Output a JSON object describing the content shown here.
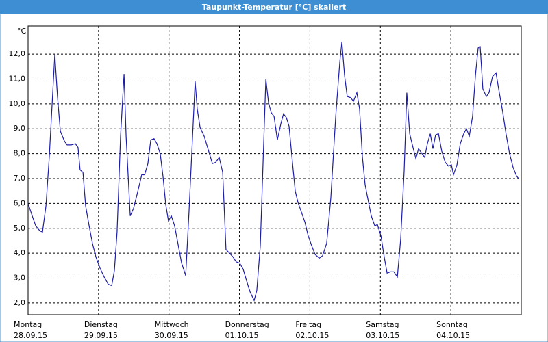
{
  "chart_data": {
    "type": "line",
    "title": "Taupunkt-Temperatur [°C] skaliert",
    "y_unit": "°C",
    "xlim": [
      0,
      168
    ],
    "ylim": [
      1.53,
      13.13
    ],
    "xticks": [
      {
        "value": 0,
        "label": "Montag"
      },
      {
        "value": 24,
        "label": "Dienstag"
      },
      {
        "value": 48,
        "label": "Mittwoch"
      },
      {
        "value": 72,
        "label": "Donnerstag"
      },
      {
        "value": 96,
        "label": "Freitag"
      },
      {
        "value": 120,
        "label": "Samstag"
      },
      {
        "value": 144,
        "label": "Sonntag"
      }
    ],
    "xtick_dates": [
      "28.09.15",
      "29.09.15",
      "30.09.15",
      "01.10.15",
      "02.10.15",
      "03.10.15",
      "04.10.15"
    ],
    "yticks": [
      {
        "value": 2,
        "label": "2,0"
      },
      {
        "value": 3,
        "label": "3,0"
      },
      {
        "value": 4,
        "label": "4,0"
      },
      {
        "value": 5,
        "label": "5,0"
      },
      {
        "value": 6,
        "label": "6,0"
      },
      {
        "value": 7,
        "label": "7,0"
      },
      {
        "value": 8,
        "label": "8,0"
      },
      {
        "value": 9,
        "label": "9,0"
      },
      {
        "value": 10,
        "label": "10,0"
      },
      {
        "value": 11,
        "label": "11,0"
      },
      {
        "value": 12,
        "label": "12,0"
      }
    ],
    "grid": true,
    "color": "#1c1ca8",
    "x": [
      0,
      1.4,
      2.6,
      4.0,
      4.9,
      6.1,
      7.2,
      8.2,
      9.1,
      10.0,
      11.0,
      12.4,
      13.3,
      14.7,
      16.1,
      17.0,
      17.7,
      18.7,
      19.6,
      20.8,
      21.9,
      23.1,
      24.5,
      25.9,
      27.3,
      28.5,
      29.4,
      30.3,
      31.5,
      32.7,
      33.4,
      34.8,
      35.9,
      37.1,
      38.0,
      38.7,
      39.7,
      40.8,
      41.8,
      42.9,
      43.9,
      45.0,
      46.0,
      46.9,
      47.8,
      48.8,
      49.9,
      51.1,
      52.3,
      53.7,
      54.8,
      56.9,
      57.6,
      58.6,
      60.0,
      61.4,
      62.8,
      63.9,
      65.1,
      66.3,
      67.4,
      68.6,
      69.8,
      70.9,
      72.1,
      73.3,
      74.4,
      75.6,
      77.0,
      77.9,
      79.1,
      81.0,
      81.9,
      82.8,
      83.8,
      84.9,
      86.1,
      87.0,
      88.0,
      88.9,
      90.1,
      91.0,
      91.9,
      93.1,
      94.3,
      95.4,
      96.6,
      97.8,
      99.2,
      100.3,
      101.7,
      103.1,
      104.8,
      106.2,
      106.9,
      107.8,
      108.7,
      109.9,
      110.8,
      112.0,
      112.9,
      113.9,
      114.8,
      115.7,
      116.9,
      118.1,
      119.0,
      120.2,
      121.3,
      122.3,
      123.4,
      124.6,
      125.8,
      126.9,
      128.1,
      129.0,
      130.0,
      131.1,
      132.1,
      133.0,
      134.2,
      135.1,
      136.0,
      137.0,
      137.9,
      138.8,
      139.8,
      140.9,
      142.1,
      143.2,
      144.2,
      144.9,
      146.1,
      147.2,
      148.4,
      149.3,
      150.3,
      151.4,
      152.4,
      153.3,
      154.0,
      154.9,
      156.1,
      157.0,
      158.2,
      159.4,
      160.5,
      161.7,
      162.8,
      164.0,
      165.2,
      166.4,
      167.1
    ],
    "values": [
      6.0,
      5.5,
      5.1,
      4.9,
      4.85,
      5.9,
      7.85,
      10.0,
      12.0,
      10.3,
      8.9,
      8.5,
      8.35,
      8.35,
      8.4,
      8.25,
      7.35,
      7.25,
      5.9,
      5.1,
      4.4,
      3.85,
      3.4,
      3.05,
      2.75,
      2.7,
      3.3,
      4.85,
      8.7,
      11.2,
      8.7,
      5.5,
      5.8,
      6.35,
      6.8,
      7.15,
      7.15,
      7.6,
      8.55,
      8.6,
      8.4,
      8.0,
      7.05,
      5.95,
      5.3,
      5.5,
      5.1,
      4.35,
      3.6,
      3.1,
      5.65,
      10.9,
      9.8,
      9.05,
      8.7,
      8.15,
      7.6,
      7.65,
      7.85,
      7.25,
      4.15,
      4.0,
      3.85,
      3.65,
      3.6,
      3.35,
      2.9,
      2.45,
      2.1,
      2.5,
      4.3,
      11.0,
      10.05,
      9.65,
      9.5,
      8.55,
      9.2,
      9.6,
      9.45,
      9.1,
      7.6,
      6.5,
      6.05,
      5.65,
      5.25,
      4.7,
      4.3,
      3.95,
      3.8,
      3.9,
      4.4,
      6.2,
      9.5,
      11.7,
      12.5,
      11.15,
      10.3,
      10.25,
      10.1,
      10.45,
      9.8,
      7.85,
      6.75,
      6.2,
      5.5,
      5.1,
      5.15,
      4.7,
      3.85,
      3.2,
      3.25,
      3.25,
      3.05,
      4.55,
      7.3,
      10.45,
      8.8,
      8.25,
      7.8,
      8.2,
      8.0,
      7.85,
      8.4,
      8.8,
      8.2,
      8.75,
      8.8,
      8.1,
      7.65,
      7.5,
      7.55,
      7.15,
      7.55,
      8.4,
      8.8,
      9.0,
      8.7,
      9.5,
      11.15,
      12.25,
      12.3,
      10.6,
      10.3,
      10.45,
      11.1,
      11.25,
      10.45,
      9.65,
      8.8,
      8.0,
      7.45,
      7.1,
      7.0
    ]
  }
}
